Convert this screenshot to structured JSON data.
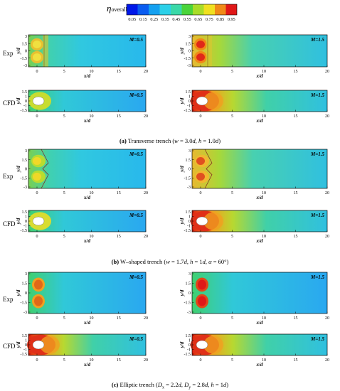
{
  "colorbar": {
    "label_symbol": "η",
    "label_sub": "overall",
    "ticks": [
      "0.05",
      "0.15",
      "0.25",
      "0.35",
      "0.45",
      "0.55",
      "0.65",
      "0.75",
      "0.85",
      "0.95"
    ],
    "colors": [
      "#0018e8",
      "#0a5cf0",
      "#14a0f0",
      "#2cd0e8",
      "#3ad8a8",
      "#4ad43a",
      "#a8dc28",
      "#f0e020",
      "#f08a18",
      "#e01818"
    ]
  },
  "row_labels": {
    "exp": "Exp",
    "cfd": "CFD"
  },
  "axes": {
    "xlabel": "x/d",
    "ylabel": "y/d",
    "x_ticks": [
      "0",
      "5",
      "10",
      "15",
      "20"
    ],
    "y_ticks_exp": [
      "3",
      "1.5",
      "0",
      "-1.5",
      "-3"
    ],
    "y_ticks_cfd": [
      "1.5",
      "1",
      "0",
      "-1",
      "-1.5"
    ]
  },
  "blowing_ratios": [
    "M=0.5",
    "M=1.5"
  ],
  "captions": [
    {
      "letter": "(a)",
      "text": "Transverse trench (",
      "w": "w",
      "eq1": " = 3.0",
      "d1": "d",
      "sep": ", ",
      "h": "h",
      "eq2": " = 1.0",
      "d2": "d",
      "end": ")"
    },
    {
      "letter": "(b)",
      "text": "W–shaped trench (",
      "w": "w",
      "eq1": " = 1.7",
      "d1": "d",
      "sep": ", ",
      "h": "h",
      "eq2": " = 1",
      "d2": "d",
      "sep2": ", ",
      "alpha": "α",
      "eq3": " = 60°)"
    },
    {
      "letter": "(c)",
      "text": "Elliptic trench (",
      "Dx": "D",
      "Dx_sub": "x",
      "eq1": " = 2.2",
      "d1": "d",
      "sep": ", ",
      "Dy": "D",
      "Dy_sub": "y",
      "eq2": " = 2.8",
      "d2": "d",
      "sep2": ", ",
      "h": "h",
      "eq3": " = 1",
      "d3": "d",
      "end": ")"
    }
  ]
}
